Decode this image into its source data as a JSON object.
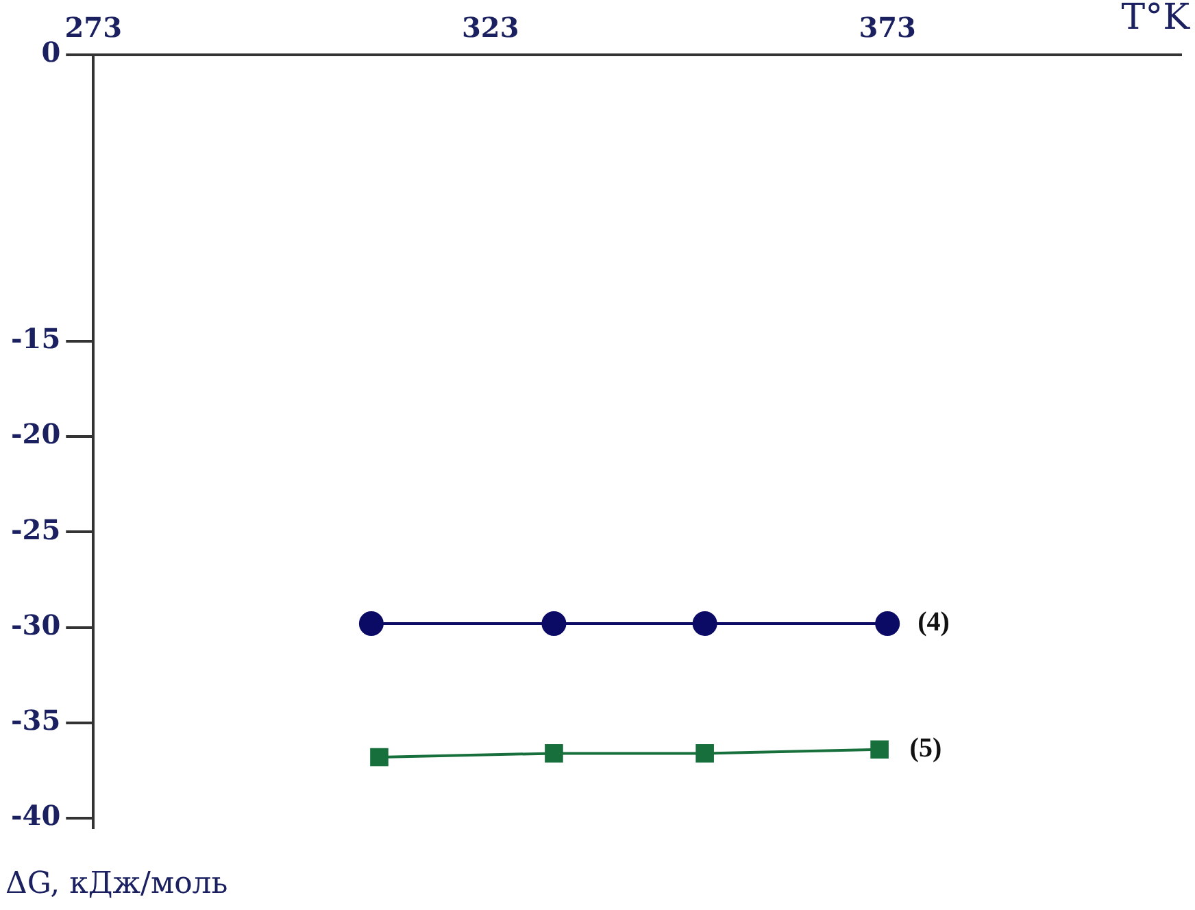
{
  "chart_data": {
    "type": "line",
    "xlabel": "T°K",
    "ylabel": "ΔG, кДж/моль",
    "xlim": [
      273,
      410
    ],
    "xticks": [
      273,
      323,
      373
    ],
    "ylim": [
      -40.5,
      0
    ],
    "yticks": [
      0,
      -15,
      -20,
      -25,
      -30,
      -35,
      -40
    ],
    "grid": false,
    "legend": false,
    "series": [
      {
        "name": "(4)",
        "color": "#0b0b66",
        "marker": "circle",
        "x": [
          308,
          331,
          350,
          373
        ],
        "values": [
          -29.8,
          -29.8,
          -29.8,
          -29.8
        ]
      },
      {
        "name": "(5)",
        "color": "#17703c",
        "marker": "square",
        "x": [
          309,
          331,
          350,
          372
        ],
        "values": [
          -36.8,
          -36.6,
          -36.6,
          -36.4
        ]
      }
    ]
  }
}
